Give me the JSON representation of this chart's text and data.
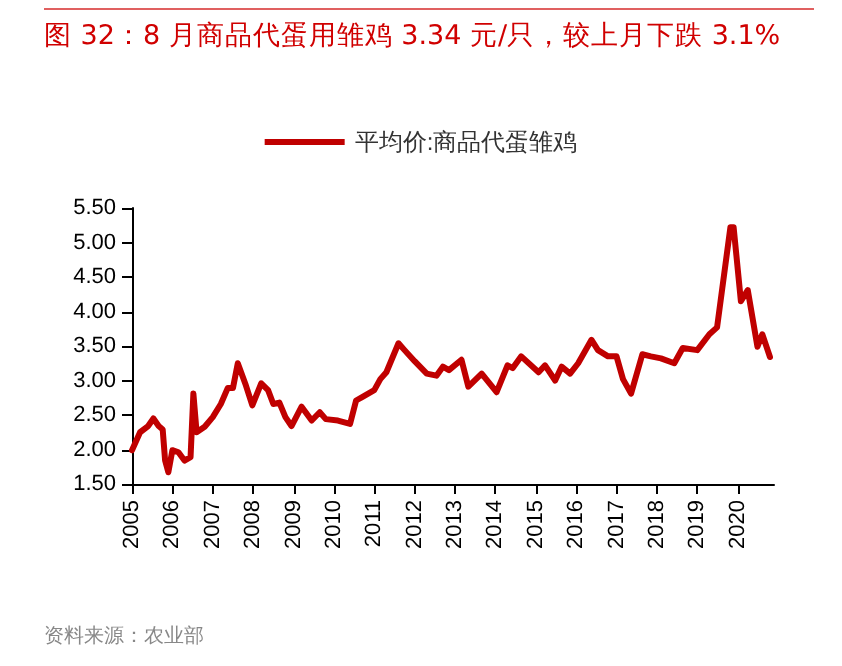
{
  "chart_data": {
    "type": "line",
    "title": "图 32：8 月商品代蛋用雏鸡 3.34 元/只，较上月下跌 3.1%",
    "x": [
      2005.0,
      2005.2,
      2005.4,
      2005.53,
      2005.66,
      2005.76,
      2005.82,
      2005.9,
      2006.0,
      2006.15,
      2006.3,
      2006.45,
      2006.52,
      2006.6,
      2006.8,
      2007.0,
      2007.2,
      2007.37,
      2007.5,
      2007.62,
      2007.82,
      2007.98,
      2008.2,
      2008.37,
      2008.5,
      2008.65,
      2008.8,
      2008.95,
      2009.2,
      2009.45,
      2009.65,
      2009.8,
      2010.1,
      2010.4,
      2010.55,
      2010.7,
      2011.0,
      2011.15,
      2011.3,
      2011.6,
      2011.75,
      2012.0,
      2012.3,
      2012.54,
      2012.7,
      2012.85,
      2013.16,
      2013.33,
      2013.66,
      2014.03,
      2014.3,
      2014.43,
      2014.64,
      2015.07,
      2015.23,
      2015.48,
      2015.64,
      2015.85,
      2016.05,
      2016.38,
      2016.54,
      2016.79,
      2017.0,
      2017.16,
      2017.36,
      2017.64,
      2017.85,
      2018.1,
      2018.43,
      2018.64,
      2019.0,
      2019.3,
      2019.49,
      2019.82,
      2019.9,
      2020.08,
      2020.25,
      2020.49,
      2020.61,
      2020.8
    ],
    "series": [
      {
        "name": "平均价:商品代蛋雏鸡",
        "color": "#c00000",
        "values": [
          1.99,
          2.25,
          2.34,
          2.45,
          2.34,
          2.29,
          1.84,
          1.67,
          1.99,
          1.96,
          1.84,
          1.89,
          2.81,
          2.25,
          2.33,
          2.47,
          2.66,
          2.89,
          2.89,
          3.25,
          2.93,
          2.64,
          2.96,
          2.86,
          2.66,
          2.68,
          2.47,
          2.34,
          2.62,
          2.42,
          2.54,
          2.44,
          2.42,
          2.37,
          2.71,
          2.76,
          2.86,
          3.02,
          3.12,
          3.54,
          3.44,
          3.28,
          3.1,
          3.07,
          3.2,
          3.15,
          3.3,
          2.91,
          3.1,
          2.83,
          3.22,
          3.18,
          3.35,
          3.12,
          3.22,
          3.0,
          3.2,
          3.1,
          3.25,
          3.59,
          3.44,
          3.35,
          3.35,
          3.02,
          2.81,
          3.38,
          3.35,
          3.32,
          3.25,
          3.47,
          3.44,
          3.67,
          3.77,
          5.22,
          5.22,
          4.15,
          4.31,
          3.49,
          3.67,
          3.34
        ]
      }
    ],
    "xlim": [
      2005,
      2020.9
    ],
    "xticks": [
      2005,
      2006,
      2007,
      2008,
      2009,
      2010,
      2011,
      2012,
      2013,
      2014,
      2015,
      2016,
      2017,
      2018,
      2019,
      2020
    ],
    "ylim": [
      1.5,
      5.5
    ],
    "yticks": [
      {
        "value": 1.5,
        "label": "1.50"
      },
      {
        "value": 2,
        "label": "2.00"
      },
      {
        "value": 2.5,
        "label": "2.50"
      },
      {
        "value": 3,
        "label": "3.00"
      },
      {
        "value": 3.5,
        "label": "3.50"
      },
      {
        "value": 4,
        "label": "4.00"
      },
      {
        "value": 4.5,
        "label": "4.50"
      },
      {
        "value": 5,
        "label": "5.00"
      },
      {
        "value": 5.5,
        "label": "5.50"
      }
    ],
    "grid": false,
    "legend": "top",
    "marker": "none",
    "line_style": "solid",
    "annotations": [
      "资料来源：农业部"
    ]
  }
}
